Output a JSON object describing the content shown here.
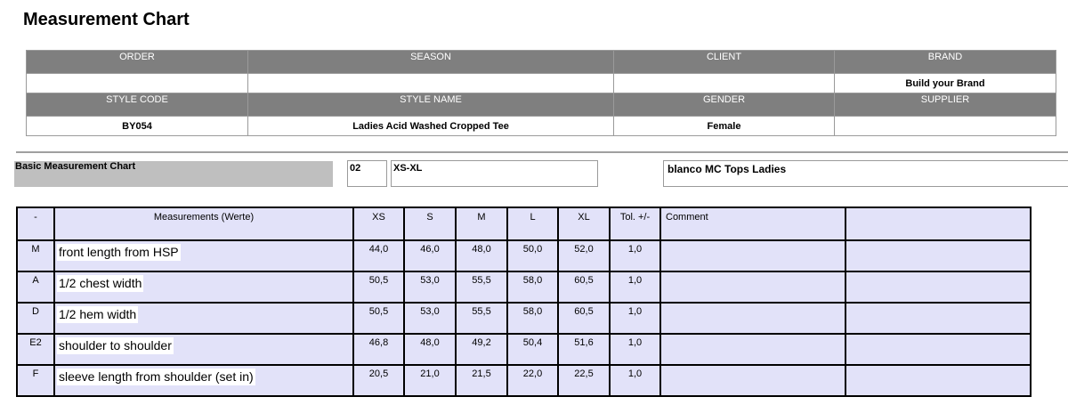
{
  "title": "Measurement Chart",
  "header": {
    "row1_labels": [
      "ORDER",
      "SEASON",
      "CLIENT",
      "BRAND"
    ],
    "row1_values": [
      "",
      "",
      "",
      "Build your Brand"
    ],
    "row2_labels": [
      "STYLE CODE",
      "STYLE NAME",
      "GENDER",
      "SUPPLIER"
    ],
    "row2_values": [
      "BY054",
      "Ladies Acid Washed Cropped Tee",
      "Female",
      ""
    ]
  },
  "chart_info": {
    "label": "Basic Measurement Chart",
    "code": "02",
    "size_range": "XS-XL",
    "client_line": "blanco MC Tops Ladies"
  },
  "table": {
    "headers": [
      "-",
      "Measurements (Werte)",
      "XS",
      "S",
      "M",
      "L",
      "XL",
      "Tol. +/-",
      "Comment",
      ""
    ],
    "rows": [
      {
        "code": "M",
        "name": "front length from HSP",
        "xs": "44,0",
        "s": "46,0",
        "m": "48,0",
        "l": "50,0",
        "xl": "52,0",
        "tol": "1,0",
        "comment": ""
      },
      {
        "code": "A",
        "name": "1/2 chest width",
        "xs": "50,5",
        "s": "53,0",
        "m": "55,5",
        "l": "58,0",
        "xl": "60,5",
        "tol": "1,0",
        "comment": ""
      },
      {
        "code": "D",
        "name": "1/2 hem width",
        "xs": "50,5",
        "s": "53,0",
        "m": "55,5",
        "l": "58,0",
        "xl": "60,5",
        "tol": "1,0",
        "comment": ""
      },
      {
        "code": "E2",
        "name": "shoulder to shoulder",
        "xs": "46,8",
        "s": "48,0",
        "m": "49,2",
        "l": "50,4",
        "xl": "51,6",
        "tol": "1,0",
        "comment": ""
      },
      {
        "code": "F",
        "name": "sleeve length from shoulder (set in)",
        "xs": "20,5",
        "s": "21,0",
        "m": "21,5",
        "l": "22,0",
        "xl": "22,5",
        "tol": "1,0",
        "comment": ""
      }
    ]
  }
}
